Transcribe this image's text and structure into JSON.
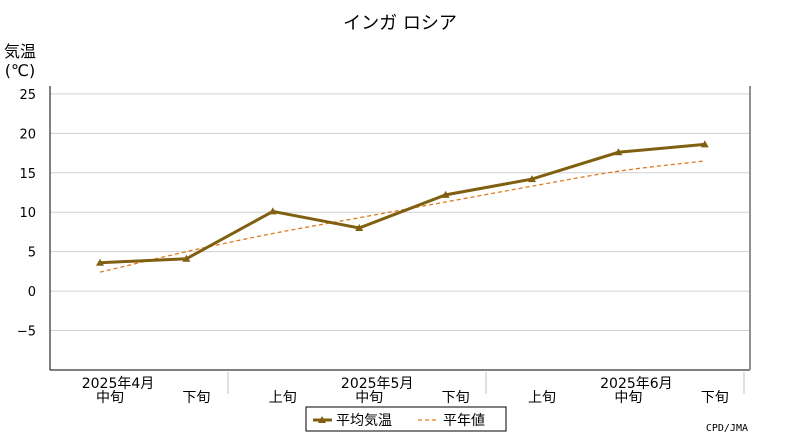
{
  "chart_data": {
    "type": "line",
    "title": "インガ ロシア",
    "ylabel_line1": "気温",
    "ylabel_line2": "(℃)",
    "ylim": [
      -10,
      26
    ],
    "yticks": [
      25,
      20,
      15,
      10,
      5,
      0,
      -5
    ],
    "ytick_labels": [
      "25",
      "20",
      "15",
      "10",
      "5",
      "0",
      "−5"
    ],
    "grid": true,
    "categories": [
      "中旬",
      "下旬",
      "上旬",
      "中旬",
      "下旬",
      "上旬",
      "中旬",
      "下旬"
    ],
    "month_labels": [
      {
        "label": "2025年4月",
        "index": 0
      },
      {
        "label": "2025年5月",
        "index": 3
      },
      {
        "label": "2025年6月",
        "index": 6
      }
    ],
    "series": [
      {
        "name": "平均気温",
        "color": "#806010",
        "values": [
          3.6,
          4.1,
          10.1,
          8.0,
          12.2,
          14.2,
          17.6,
          18.6
        ]
      },
      {
        "name": "平年値",
        "color": "#e07a20",
        "values": [
          2.4,
          5.0,
          7.3,
          9.3,
          11.3,
          13.3,
          15.2,
          16.5
        ]
      }
    ],
    "legend_position": "bottom-center",
    "credit": "CPD/JMA"
  }
}
